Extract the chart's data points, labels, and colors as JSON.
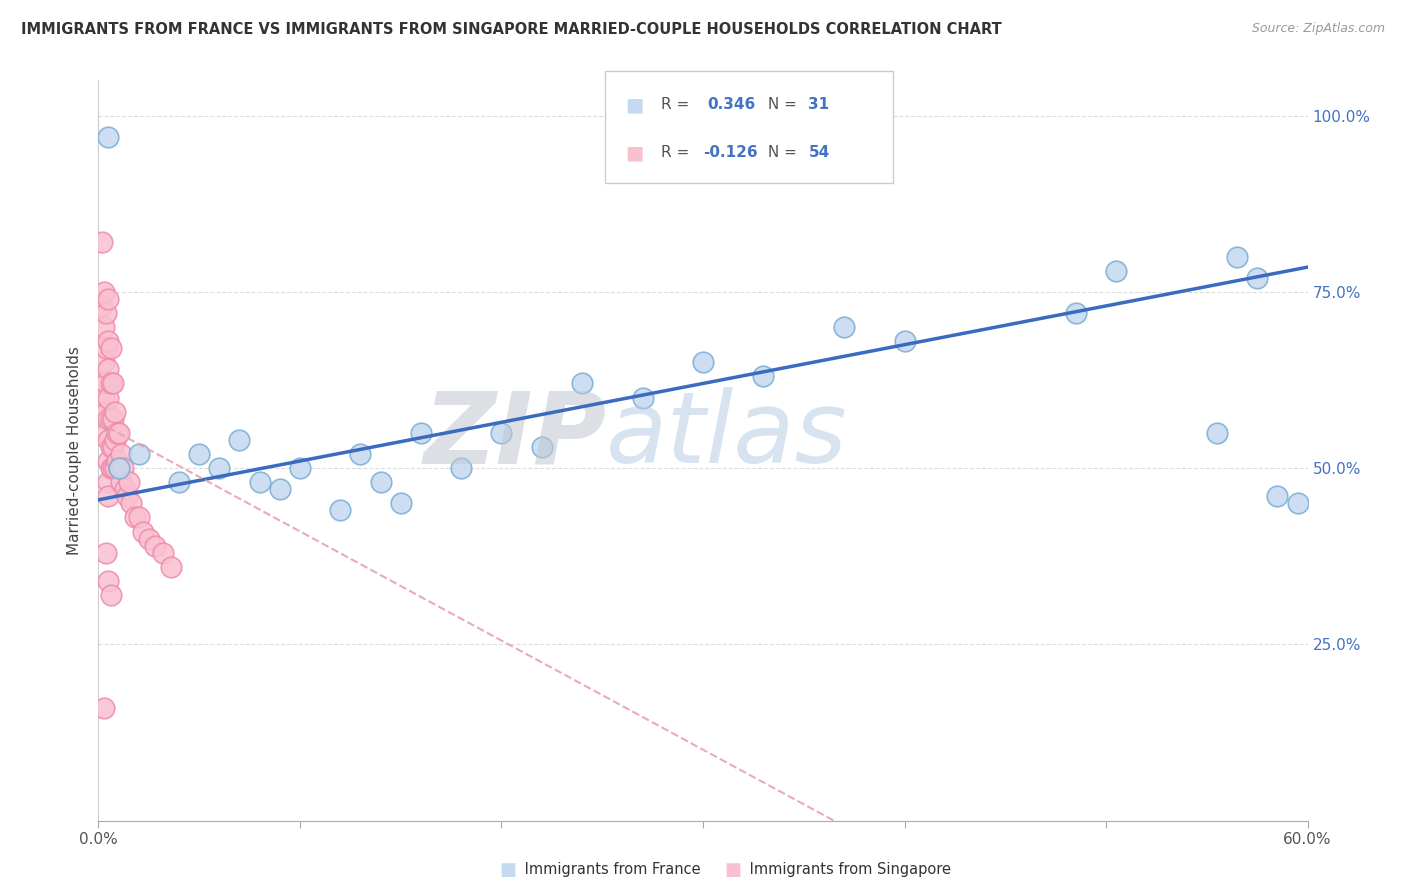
{
  "title": "IMMIGRANTS FROM FRANCE VS IMMIGRANTS FROM SINGAPORE MARRIED-COUPLE HOUSEHOLDS CORRELATION CHART",
  "source": "Source: ZipAtlas.com",
  "ylabel": "Married-couple Households",
  "R_france": 0.346,
  "N_france": 31,
  "R_singapore": -0.126,
  "N_singapore": 54,
  "color_france_fill": "#c5d9f0",
  "color_france_edge": "#7aadd4",
  "color_singapore_fill": "#f9c0d0",
  "color_singapore_edge": "#f08aaa",
  "line_france_color": "#3a6bbf",
  "line_singapore_color": "#e8a0b8",
  "watermark_zip_color": "#c8cdd4",
  "watermark_atlas_color": "#c8d8e8",
  "xlim": [
    0.0,
    0.6
  ],
  "ylim": [
    0.0,
    1.05
  ],
  "y_ticks": [
    0.25,
    0.5,
    0.75,
    1.0
  ],
  "y_tick_labels": [
    "25.0%",
    "50.0%",
    "75.0%",
    "100.0%"
  ],
  "x_ticks": [
    0.0,
    0.1,
    0.2,
    0.3,
    0.4,
    0.5,
    0.6
  ],
  "grid_color": "#dddddd",
  "background_color": "#ffffff",
  "france_x": [
    0.005,
    0.01,
    0.02,
    0.04,
    0.05,
    0.06,
    0.07,
    0.08,
    0.09,
    0.1,
    0.12,
    0.13,
    0.14,
    0.15,
    0.16,
    0.18,
    0.2,
    0.22,
    0.24,
    0.27,
    0.3,
    0.33,
    0.37,
    0.4,
    0.485,
    0.505,
    0.555,
    0.565,
    0.575,
    0.585,
    0.595
  ],
  "france_y": [
    0.97,
    0.5,
    0.52,
    0.48,
    0.52,
    0.5,
    0.54,
    0.48,
    0.47,
    0.5,
    0.44,
    0.52,
    0.48,
    0.45,
    0.55,
    0.5,
    0.55,
    0.53,
    0.62,
    0.6,
    0.65,
    0.63,
    0.7,
    0.68,
    0.72,
    0.78,
    0.55,
    0.8,
    0.77,
    0.46,
    0.45
  ],
  "singapore_x": [
    0.002,
    0.002,
    0.003,
    0.003,
    0.003,
    0.003,
    0.004,
    0.004,
    0.004,
    0.004,
    0.004,
    0.005,
    0.005,
    0.005,
    0.005,
    0.005,
    0.005,
    0.005,
    0.005,
    0.005,
    0.006,
    0.006,
    0.006,
    0.006,
    0.006,
    0.007,
    0.007,
    0.007,
    0.007,
    0.008,
    0.008,
    0.008,
    0.009,
    0.009,
    0.01,
    0.01,
    0.011,
    0.011,
    0.012,
    0.013,
    0.014,
    0.015,
    0.016,
    0.018,
    0.02,
    0.022,
    0.025,
    0.028,
    0.032,
    0.036,
    0.004,
    0.005,
    0.006,
    0.003
  ],
  "singapore_y": [
    0.82,
    0.73,
    0.75,
    0.7,
    0.65,
    0.6,
    0.72,
    0.67,
    0.62,
    0.58,
    0.55,
    0.74,
    0.68,
    0.64,
    0.6,
    0.57,
    0.54,
    0.51,
    0.48,
    0.46,
    0.67,
    0.62,
    0.57,
    0.53,
    0.5,
    0.62,
    0.57,
    0.53,
    0.5,
    0.58,
    0.54,
    0.5,
    0.55,
    0.51,
    0.55,
    0.5,
    0.52,
    0.48,
    0.5,
    0.47,
    0.46,
    0.48,
    0.45,
    0.43,
    0.43,
    0.41,
    0.4,
    0.39,
    0.38,
    0.36,
    0.38,
    0.34,
    0.32,
    0.16
  ],
  "france_line_x": [
    0.0,
    0.6
  ],
  "france_line_y": [
    0.455,
    0.785
  ],
  "singapore_line_x": [
    0.0,
    0.365
  ],
  "singapore_line_y": [
    0.565,
    0.0
  ]
}
